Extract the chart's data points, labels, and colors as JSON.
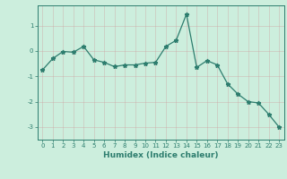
{
  "title": "",
  "xlabel": "Humidex (Indice chaleur)",
  "ylabel": "",
  "x": [
    0,
    1,
    2,
    3,
    4,
    5,
    6,
    7,
    8,
    9,
    10,
    11,
    12,
    13,
    14,
    15,
    16,
    17,
    18,
    19,
    20,
    21,
    22,
    23
  ],
  "y": [
    -0.75,
    -0.3,
    -0.02,
    -0.05,
    0.18,
    -0.35,
    -0.45,
    -0.62,
    -0.55,
    -0.55,
    -0.48,
    -0.45,
    0.18,
    0.42,
    1.45,
    -0.65,
    -0.38,
    -0.55,
    -1.3,
    -1.7,
    -2.0,
    -2.05,
    -2.5,
    -3.0
  ],
  "line_color": "#2d7d6e",
  "marker": "*",
  "marker_size": 3.5,
  "bg_color": "#cceedd",
  "grid_color": "#aacccc",
  "axis_color": "#2d7d6e",
  "ylim": [
    -3.5,
    1.8
  ],
  "xlim": [
    -0.5,
    23.5
  ],
  "yticks": [
    -3,
    -2,
    -1,
    0,
    1
  ],
  "xticks": [
    0,
    1,
    2,
    3,
    4,
    5,
    6,
    7,
    8,
    9,
    10,
    11,
    12,
    13,
    14,
    15,
    16,
    17,
    18,
    19,
    20,
    21,
    22,
    23
  ]
}
